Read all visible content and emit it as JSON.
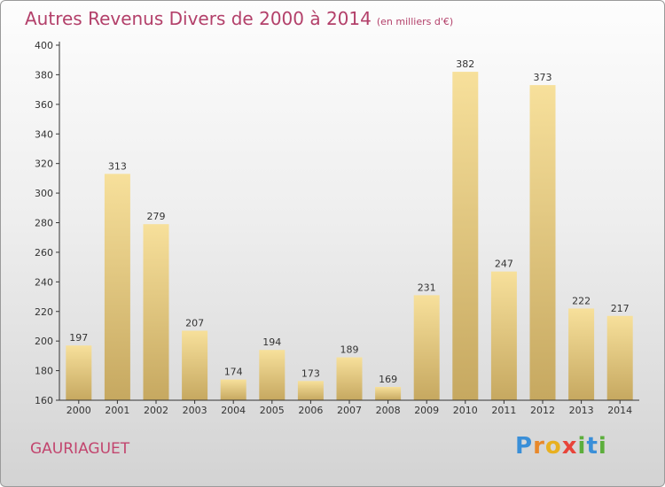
{
  "header": {
    "title": "Autres Revenus Divers de 2000 à 2014",
    "unit": "(en milliers d'€)"
  },
  "footer": {
    "commune": "GAURIAGUET",
    "logo_text": "Proxiti"
  },
  "colors": {
    "title": "#b3406a",
    "bar_light": "#f6de97",
    "bar_dark": "#c8aa62",
    "axis": "#333333"
  },
  "chart_data": {
    "type": "bar",
    "title": "Autres Revenus Divers de 2000 à 2014",
    "subtitle": "(en milliers d'€)",
    "xlabel": "",
    "ylabel": "",
    "categories": [
      "2000",
      "2001",
      "2002",
      "2003",
      "2004",
      "2005",
      "2006",
      "2007",
      "2008",
      "2009",
      "2010",
      "2011",
      "2012",
      "2013",
      "2014"
    ],
    "values": [
      197,
      313,
      279,
      207,
      174,
      194,
      173,
      189,
      169,
      231,
      382,
      247,
      373,
      222,
      217
    ],
    "ylim": [
      160,
      400
    ],
    "yticks": [
      160,
      180,
      200,
      220,
      240,
      260,
      280,
      300,
      320,
      340,
      360,
      380,
      400
    ],
    "grid": false,
    "legend": "none"
  }
}
